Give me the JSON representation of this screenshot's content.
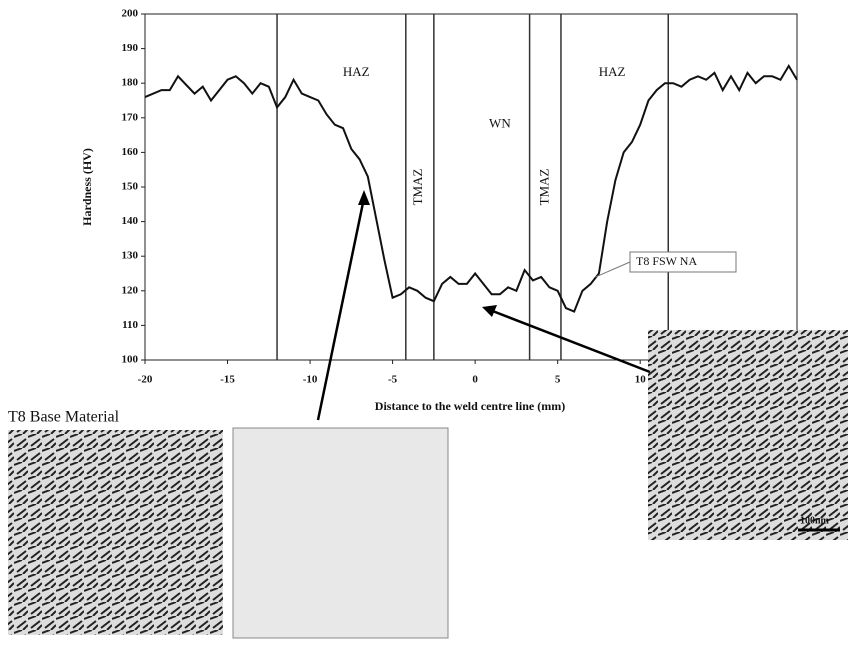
{
  "chart_data": {
    "type": "line",
    "xlabel": "Distance to the weld centre line (mm)",
    "ylabel": "Hardness (HV)",
    "xlim": [
      -20,
      19.5
    ],
    "ylim": [
      100,
      200
    ],
    "xticks": [
      -20,
      -15,
      -10,
      -5,
      0,
      5,
      10
    ],
    "yticks": [
      100,
      110,
      120,
      130,
      140,
      150,
      160,
      170,
      180,
      190,
      200
    ],
    "zone_lines": [
      -12,
      -4.2,
      -2.5,
      3.3,
      5.2,
      11.7
    ],
    "zone_labels": [
      "HAZ",
      "TMAZ",
      "WN",
      "TMAZ",
      "HAZ"
    ],
    "x": [
      -20,
      -19,
      -18.5,
      -18,
      -17,
      -16.5,
      -16,
      -15,
      -14.5,
      -14,
      -13.5,
      -13,
      -12.5,
      -12,
      -11.5,
      -11,
      -10.5,
      -10,
      -9.5,
      -9,
      -8.5,
      -8,
      -7.5,
      -7,
      -6.5,
      -6,
      -5.5,
      -5,
      -4.5,
      -4,
      -3.5,
      -3,
      -2.5,
      -2,
      -1.5,
      -1,
      -0.5,
      0,
      0.5,
      1,
      1.5,
      2,
      2.5,
      3,
      3.5,
      4,
      4.5,
      5,
      5.5,
      6,
      6.5,
      7,
      7.5,
      8,
      8.5,
      9,
      9.5,
      10,
      10.5,
      11,
      11.5,
      12,
      12.5,
      13,
      13.5,
      14,
      14.5,
      15,
      15.5,
      16,
      16.5,
      17,
      17.5,
      18,
      18.5,
      19,
      19.5
    ],
    "series": [
      {
        "name": "T8 FSW NA",
        "color": "#111111",
        "values": [
          176,
          178,
          178,
          182,
          177,
          179,
          175,
          181,
          182,
          180,
          177,
          180,
          179,
          173,
          176,
          181,
          177,
          176,
          175,
          171,
          168,
          167,
          161,
          158,
          153,
          141,
          129,
          118,
          119,
          121,
          120,
          118,
          117,
          122,
          124,
          122,
          122,
          125,
          122,
          119,
          119,
          121,
          120,
          126,
          123,
          124,
          121,
          120,
          115,
          114,
          120,
          122,
          125,
          140,
          152,
          160,
          163,
          168,
          175,
          178,
          180,
          180,
          179,
          181,
          182,
          181,
          183,
          178,
          182,
          178,
          183,
          180,
          182,
          182,
          181,
          185,
          181
        ]
      }
    ]
  },
  "insets": {
    "base_label": "T8 Base Material",
    "scale_bar": "100nm"
  }
}
